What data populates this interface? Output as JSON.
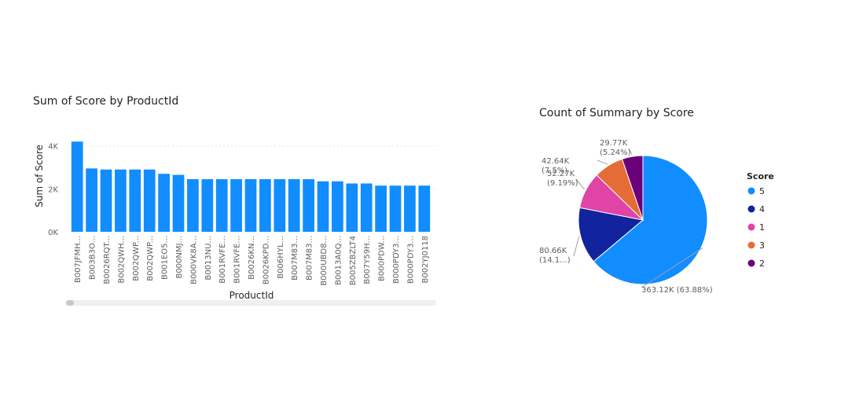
{
  "bar_visual": {
    "title": "Sum of Score by ProductId"
  },
  "pie_visual": {
    "title": "Count of Summary by Score"
  },
  "chart_data": [
    {
      "type": "bar",
      "title": "Sum of Score by ProductId",
      "xlabel": "ProductId",
      "ylabel": "Sum of Score",
      "ylim": [
        0,
        4500
      ],
      "y_ticks": [
        0,
        2000,
        4000
      ],
      "y_tick_labels": [
        "0K",
        "2K",
        "4K"
      ],
      "grid": true,
      "color": "#118DFF",
      "categories": [
        "B007JFMH...",
        "B003B3O...",
        "B0026RQT...",
        "B002QWH...",
        "B002QWP...",
        "B002QWP...",
        "B001EO5...",
        "B000NMJ...",
        "B000VK8A...",
        "B0013NU...",
        "B001RVFE...",
        "B001RVFE...",
        "B0026KN...",
        "B0026KPD...",
        "B006HYL...",
        "B007M83...",
        "B007M83...",
        "B000UBD8...",
        "B0013A0Q...",
        "B005ZBZLT4",
        "B007Y59H...",
        "B000PDW...",
        "B000PDY3...",
        "B000PDY3...",
        "B002YJ0118"
      ],
      "values": [
        4200,
        2950,
        2900,
        2900,
        2900,
        2900,
        2700,
        2650,
        2450,
        2450,
        2450,
        2450,
        2450,
        2450,
        2450,
        2450,
        2450,
        2350,
        2350,
        2250,
        2250,
        2150,
        2150,
        2150,
        2150
      ]
    },
    {
      "type": "pie",
      "title": "Count of Summary by Score",
      "legend_title": "Score",
      "legend_position": "right",
      "series": [
        {
          "name": "5",
          "value": 363120,
          "label": "363.12K (63.88%)",
          "color": "#118DFF"
        },
        {
          "name": "4",
          "value": 80660,
          "label": "80.66K (14.1...)",
          "color": "#12239E"
        },
        {
          "name": "1",
          "value": 52270,
          "label": "52.27K (9.19%)",
          "color": "#E044A7"
        },
        {
          "name": "3",
          "value": 42640,
          "label": "42.64K (7.5%)",
          "color": "#E66C37"
        },
        {
          "name": "2",
          "value": 29770,
          "label": "29.77K (5.24%)",
          "color": "#6B007B"
        }
      ]
    }
  ]
}
